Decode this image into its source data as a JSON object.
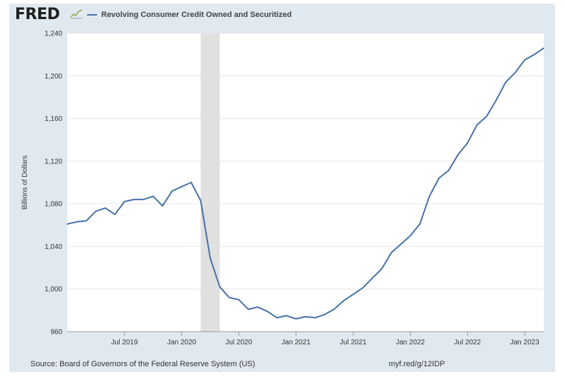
{
  "header": {
    "logo_text": "FRED",
    "logo_icon": "chart-line-icon"
  },
  "colors": {
    "frame_bg": "#e1e9f0",
    "plot_bg": "#ffffff",
    "series": "#4572a7",
    "recession": "#e0e0e0",
    "grid": "#e6e6e6"
  },
  "footer": {
    "source": "Source: Board of Governors of the Federal Reserve System (US)",
    "link": "myf.red/g/12IDP"
  },
  "chart_data": {
    "type": "line",
    "title": "",
    "xlabel": "",
    "ylabel": "Billions of Dollars",
    "ylim": [
      960,
      1240
    ],
    "yticks": [
      960,
      1000,
      1040,
      1080,
      1120,
      1160,
      1200,
      1240
    ],
    "ytick_labels": [
      "960",
      "1,000",
      "1,040",
      "1,080",
      "1,120",
      "1,160",
      "1,200",
      "1,240"
    ],
    "xlim": [
      "2019-01",
      "2023-03"
    ],
    "xticks": [
      "2019-07",
      "2020-01",
      "2020-07",
      "2021-01",
      "2021-07",
      "2022-01",
      "2022-07",
      "2023-01"
    ],
    "xtick_labels": [
      "Jul 2019",
      "Jan 2020",
      "Jul 2020",
      "Jan 2021",
      "Jul 2021",
      "Jan 2022",
      "Jul 2022",
      "Jan 2023"
    ],
    "grid": true,
    "legend_placement": "top-left",
    "recessions": [
      {
        "start": "2020-03",
        "end": "2020-05"
      }
    ],
    "series": [
      {
        "name": "Revolving Consumer Credit Owned and Securitized",
        "x": [
          "2019-01",
          "2019-02",
          "2019-03",
          "2019-04",
          "2019-05",
          "2019-06",
          "2019-07",
          "2019-08",
          "2019-09",
          "2019-10",
          "2019-11",
          "2019-12",
          "2020-01",
          "2020-02",
          "2020-03",
          "2020-04",
          "2020-05",
          "2020-06",
          "2020-07",
          "2020-08",
          "2020-09",
          "2020-10",
          "2020-11",
          "2020-12",
          "2021-01",
          "2021-02",
          "2021-03",
          "2021-04",
          "2021-05",
          "2021-06",
          "2021-07",
          "2021-08",
          "2021-09",
          "2021-10",
          "2021-11",
          "2021-12",
          "2022-01",
          "2022-02",
          "2022-03",
          "2022-04",
          "2022-05",
          "2022-06",
          "2022-07",
          "2022-08",
          "2022-09",
          "2022-10",
          "2022-11",
          "2022-12",
          "2023-01",
          "2023-02",
          "2023-03"
        ],
        "values": [
          1061,
          1063,
          1064,
          1073,
          1076,
          1070,
          1082,
          1084,
          1084,
          1087,
          1078,
          1092,
          1096,
          1100,
          1083,
          1029,
          1002,
          992,
          990,
          981,
          983,
          979,
          973,
          975,
          972,
          974,
          973,
          976,
          981,
          989,
          995,
          1001,
          1010,
          1019,
          1034,
          1042,
          1050,
          1061,
          1087,
          1104,
          1111,
          1126,
          1137,
          1154,
          1162,
          1177,
          1194,
          1203,
          1215,
          1220,
          1226
        ]
      }
    ]
  }
}
